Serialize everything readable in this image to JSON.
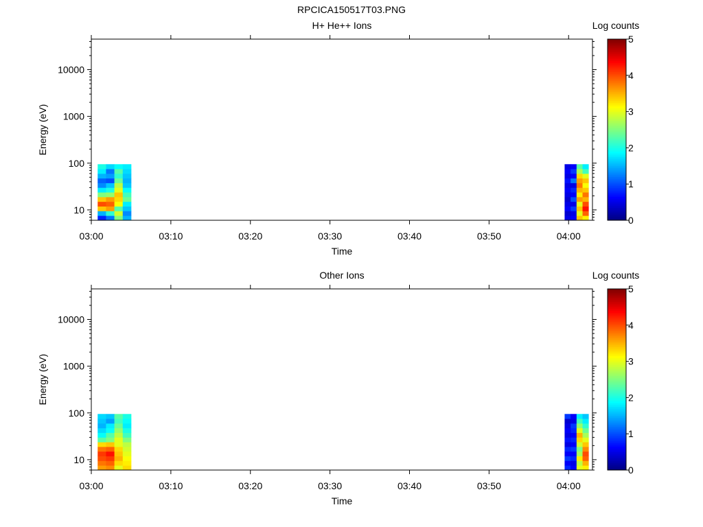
{
  "title": "RPCICA150517T03.PNG",
  "chart_data": [
    {
      "type": "heatmap",
      "title": "H+ He++ Ions",
      "xlabel": "Time",
      "ylabel": "Energy (eV)",
      "y_scale": "log",
      "ylim": [
        6,
        45000
      ],
      "xlim": [
        "03:00",
        "04:03"
      ],
      "x_ticks": [
        "03:00",
        "03:10",
        "03:20",
        "03:30",
        "03:40",
        "03:50",
        "04:00"
      ],
      "y_ticks": [
        "10",
        "100",
        "1000",
        "10000"
      ],
      "colorbar": {
        "label": "Log counts",
        "min": 0,
        "max": 5,
        "ticks": [
          "0",
          "1",
          "2",
          "3",
          "4",
          "5"
        ]
      },
      "energy_range": [
        6,
        95
      ],
      "blocks": [
        {
          "t_start": "03:00.8",
          "t_end": "03:05.0",
          "values": [
            [
              0.8,
              1.2,
              2.5,
              1.5
            ],
            [
              1.5,
              2.1,
              2.9,
              1.3
            ],
            [
              3.4,
              3.6,
              2.3,
              1.6
            ],
            [
              4.0,
              3.9,
              3.1,
              1.8
            ],
            [
              3.4,
              3.6,
              3.3,
              2.4
            ],
            [
              2.5,
              2.6,
              3.4,
              2.2
            ],
            [
              1.8,
              2.0,
              3.0,
              1.9
            ],
            [
              1.3,
              1.6,
              2.8,
              1.6
            ],
            [
              1.1,
              1.0,
              2.4,
              1.5
            ],
            [
              1.5,
              1.4,
              2.1,
              1.6
            ],
            [
              1.8,
              1.2,
              2.3,
              1.7
            ],
            [
              2.0,
              1.7,
              1.9,
              1.8
            ]
          ]
        },
        {
          "t_start": "03:59.5",
          "t_end": "04:02.5",
          "values": [
            [
              0.5,
              0.6,
              3.4,
              3.2
            ],
            [
              0.4,
              0.5,
              3.0,
              3.9
            ],
            [
              0.6,
              0.9,
              3.4,
              4.3
            ],
            [
              0.5,
              0.5,
              3.0,
              4.0
            ],
            [
              0.4,
              1.0,
              3.6,
              3.5
            ],
            [
              0.5,
              0.6,
              3.2,
              3.8
            ],
            [
              0.6,
              0.8,
              3.5,
              3.4
            ],
            [
              0.5,
              0.5,
              3.8,
              3.1
            ],
            [
              0.7,
              1.2,
              3.6,
              3.4
            ],
            [
              0.5,
              0.6,
              3.3,
              3.0
            ],
            [
              0.6,
              0.9,
              2.7,
              2.2
            ],
            [
              0.5,
              0.6,
              2.3,
              1.8
            ]
          ]
        }
      ]
    },
    {
      "type": "heatmap",
      "title": "Other Ions",
      "xlabel": "Time",
      "ylabel": "Energy (eV)",
      "y_scale": "log",
      "ylim": [
        6,
        45000
      ],
      "xlim": [
        "03:00",
        "04:03"
      ],
      "x_ticks": [
        "03:00",
        "03:10",
        "03:20",
        "03:30",
        "03:40",
        "03:50",
        "04:00"
      ],
      "y_ticks": [
        "10",
        "100",
        "1000",
        "10000"
      ],
      "colorbar": {
        "label": "Log counts",
        "min": 0,
        "max": 5,
        "ticks": [
          "0",
          "1",
          "2",
          "3",
          "4",
          "5"
        ]
      },
      "energy_range": [
        6,
        95
      ],
      "blocks": [
        {
          "t_start": "03:00.8",
          "t_end": "03:05.0",
          "values": [
            [
              3.6,
              3.7,
              3.0,
              3.3
            ],
            [
              3.8,
              3.9,
              3.3,
              3.2
            ],
            [
              4.0,
              4.1,
              3.5,
              3.1
            ],
            [
              4.1,
              4.3,
              3.4,
              3.0
            ],
            [
              3.8,
              3.9,
              3.3,
              2.9
            ],
            [
              3.3,
              3.4,
              3.0,
              2.8
            ],
            [
              2.3,
              2.5,
              3.0,
              2.5
            ],
            [
              1.9,
              2.3,
              2.8,
              2.2
            ],
            [
              1.7,
              1.9,
              2.6,
              2.0
            ],
            [
              1.5,
              1.8,
              2.4,
              1.8
            ],
            [
              1.6,
              1.4,
              2.2,
              1.9
            ],
            [
              1.7,
              1.6,
              2.3,
              2.0
            ]
          ]
        },
        {
          "t_start": "03:59.5",
          "t_end": "04:02.5",
          "values": [
            [
              0.8,
              0.6,
              3.0,
              3.2
            ],
            [
              0.6,
              0.5,
              2.8,
              3.5
            ],
            [
              0.9,
              0.8,
              3.2,
              3.9
            ],
            [
              0.6,
              0.6,
              2.7,
              4.0
            ],
            [
              0.8,
              0.9,
              2.5,
              3.7
            ],
            [
              0.5,
              0.6,
              2.9,
              3.4
            ],
            [
              0.7,
              0.8,
              3.3,
              3.0
            ],
            [
              0.5,
              0.6,
              3.5,
              2.7
            ],
            [
              0.6,
              0.8,
              3.0,
              2.4
            ],
            [
              0.5,
              0.9,
              2.6,
              2.1
            ],
            [
              0.4,
              0.5,
              2.2,
              1.8
            ],
            [
              0.9,
              0.6,
              1.8,
              1.6
            ]
          ]
        }
      ]
    }
  ]
}
